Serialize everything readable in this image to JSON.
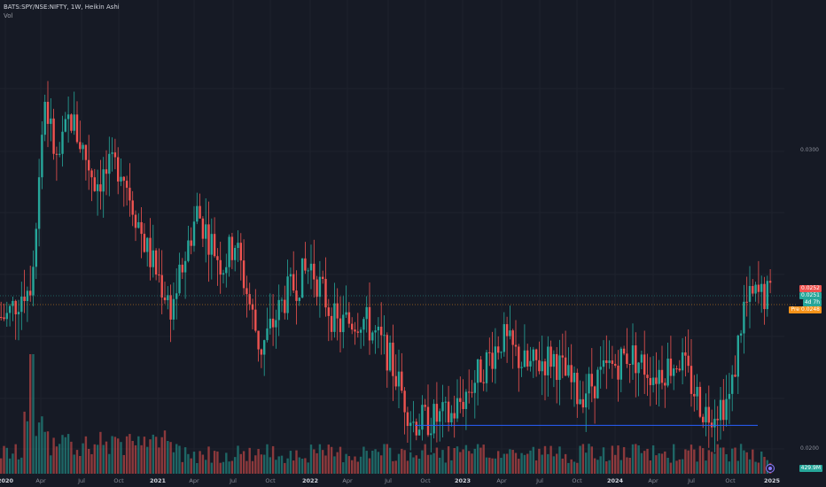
{
  "legend": {
    "symbol": "BATS:SPY/NSE:NIFTY, 1W, Heikin Ashi",
    "indicator": "Vol"
  },
  "price_scale": {
    "labels": [
      "0.0300",
      "0.0200"
    ],
    "last_price": "0.0252",
    "close_price": "0.0251",
    "countdown": "4d 7h",
    "pre_label": "Pre",
    "pre_price": "0.0248",
    "volume": "429.9M"
  },
  "time_axis": [
    {
      "label": "2020",
      "year": true
    },
    {
      "label": "Apr",
      "year": false
    },
    {
      "label": "Jul",
      "year": false
    },
    {
      "label": "Oct",
      "year": false
    },
    {
      "label": "2021",
      "year": true
    },
    {
      "label": "Apr",
      "year": false
    },
    {
      "label": "Jul",
      "year": false
    },
    {
      "label": "Oct",
      "year": false
    },
    {
      "label": "2022",
      "year": true
    },
    {
      "label": "Apr",
      "year": false
    },
    {
      "label": "Jul",
      "year": false
    },
    {
      "label": "Oct",
      "year": false
    },
    {
      "label": "2023",
      "year": true
    },
    {
      "label": "Apr",
      "year": false
    },
    {
      "label": "Jul",
      "year": false
    },
    {
      "label": "Oct",
      "year": false
    },
    {
      "label": "2024",
      "year": true
    },
    {
      "label": "Apr",
      "year": false
    },
    {
      "label": "Jul",
      "year": false
    },
    {
      "label": "Oct",
      "year": false
    },
    {
      "label": "2025",
      "year": true
    }
  ],
  "colors": {
    "background": "#161a25",
    "up": "#26a69a",
    "down": "#ef5350",
    "support_line": "#2962ff",
    "pre": "#f7931a"
  },
  "chart_data": {
    "type": "candlestick",
    "style": "Heikin Ashi",
    "interval": "1W",
    "x_range": [
      "2020",
      "2025"
    ],
    "support_level_approx": 0.0209,
    "anchors": [
      {
        "t": "2020-01",
        "p": 0.0245
      },
      {
        "t": "2020-03",
        "p": 0.0258
      },
      {
        "t": "2020-04",
        "p": 0.0318
      },
      {
        "t": "2020-05",
        "p": 0.0295
      },
      {
        "t": "2020-06",
        "p": 0.0312
      },
      {
        "t": "2020-08",
        "p": 0.029
      },
      {
        "t": "2020-10",
        "p": 0.0296
      },
      {
        "t": "2020-12",
        "p": 0.0268
      },
      {
        "t": "2021-02",
        "p": 0.0248
      },
      {
        "t": "2021-04",
        "p": 0.028
      },
      {
        "t": "2021-06",
        "p": 0.0262
      },
      {
        "t": "2021-07",
        "p": 0.027
      },
      {
        "t": "2021-09",
        "p": 0.0234
      },
      {
        "t": "2021-11",
        "p": 0.0252
      },
      {
        "t": "2022-01",
        "p": 0.0262
      },
      {
        "t": "2022-03",
        "p": 0.0242
      },
      {
        "t": "2022-05",
        "p": 0.0245
      },
      {
        "t": "2022-07",
        "p": 0.0233
      },
      {
        "t": "2022-09",
        "p": 0.021
      },
      {
        "t": "2022-12",
        "p": 0.0212
      },
      {
        "t": "2023-04",
        "p": 0.0238
      },
      {
        "t": "2023-06",
        "p": 0.0228
      },
      {
        "t": "2023-08",
        "p": 0.0232
      },
      {
        "t": "2023-10",
        "p": 0.0219
      },
      {
        "t": "2023-12",
        "p": 0.0226
      },
      {
        "t": "2024-02",
        "p": 0.0233
      },
      {
        "t": "2024-04",
        "p": 0.0226
      },
      {
        "t": "2024-06",
        "p": 0.0231
      },
      {
        "t": "2024-08",
        "p": 0.0213
      },
      {
        "t": "2024-10",
        "p": 0.0218
      },
      {
        "t": "2024-11",
        "p": 0.0248
      },
      {
        "t": "2024-12",
        "p": 0.0252
      }
    ]
  }
}
